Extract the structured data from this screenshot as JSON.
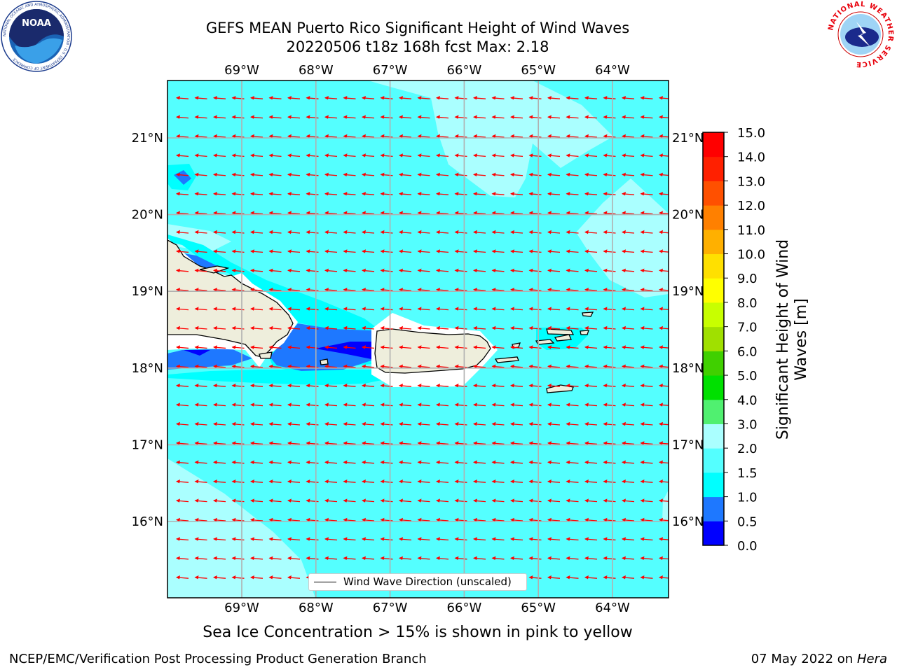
{
  "title": {
    "line1": "GEFS MEAN Puerto Rico Significant Height of Wind Waves",
    "line2": "20220506 t18z 168h fcst   Max: 2.18"
  },
  "logos": {
    "noaa_text": "NOAA",
    "noaa_ring_text": "NATIONAL OCEANIC AND ATMOSPHERIC ADMINISTRATION · U.S. DEPARTMENT OF COMMERCE",
    "nws_ring_text": "NATIONAL WEATHER SERVICE"
  },
  "axes": {
    "lon_ticks": [
      "69°W",
      "68°W",
      "67°W",
      "66°W",
      "65°W",
      "64°W"
    ],
    "lat_ticks": [
      "21°N",
      "20°N",
      "19°N",
      "18°N",
      "17°N",
      "16°N"
    ]
  },
  "legend": {
    "label": "Wind Wave Direction (unscaled)"
  },
  "colorbar": {
    "title_line1": "Significant Height of Wind",
    "title_line2": "Waves [m]",
    "ticks": [
      "0.0",
      "0.5",
      "1.0",
      "1.5",
      "2.0",
      "3.0",
      "4.0",
      "5.0",
      "6.0",
      "7.0",
      "8.0",
      "9.0",
      "10.0",
      "11.0",
      "12.0",
      "13.0",
      "14.0",
      "15.0"
    ],
    "colors": [
      "#0000ff",
      "#1e78ff",
      "#00ffff",
      "#54ffff",
      "#aaffff",
      "#50f070",
      "#00e000",
      "#40d000",
      "#a0e000",
      "#c8ff00",
      "#ffff00",
      "#ffe000",
      "#ffb000",
      "#ff8000",
      "#ff5000",
      "#ff2000",
      "#ff0000"
    ]
  },
  "map_colors": {
    "ocean_main": "#54ffff",
    "ocean_light": "#aaffff",
    "ocean_cyan": "#00ffff",
    "ocean_mid_blue": "#1e78ff",
    "ocean_deep_blue": "#0000ff",
    "land": "#eeeedc",
    "arrow": "#ff0000"
  },
  "notes": {
    "sea_ice": "Sea Ice Concentration > 15% is shown in pink to yellow"
  },
  "footer": {
    "left": "NCEP/EMC/Verification Post Processing Product Generation Branch",
    "right_date": "07 May 2022 on",
    "right_host": "Hera"
  }
}
